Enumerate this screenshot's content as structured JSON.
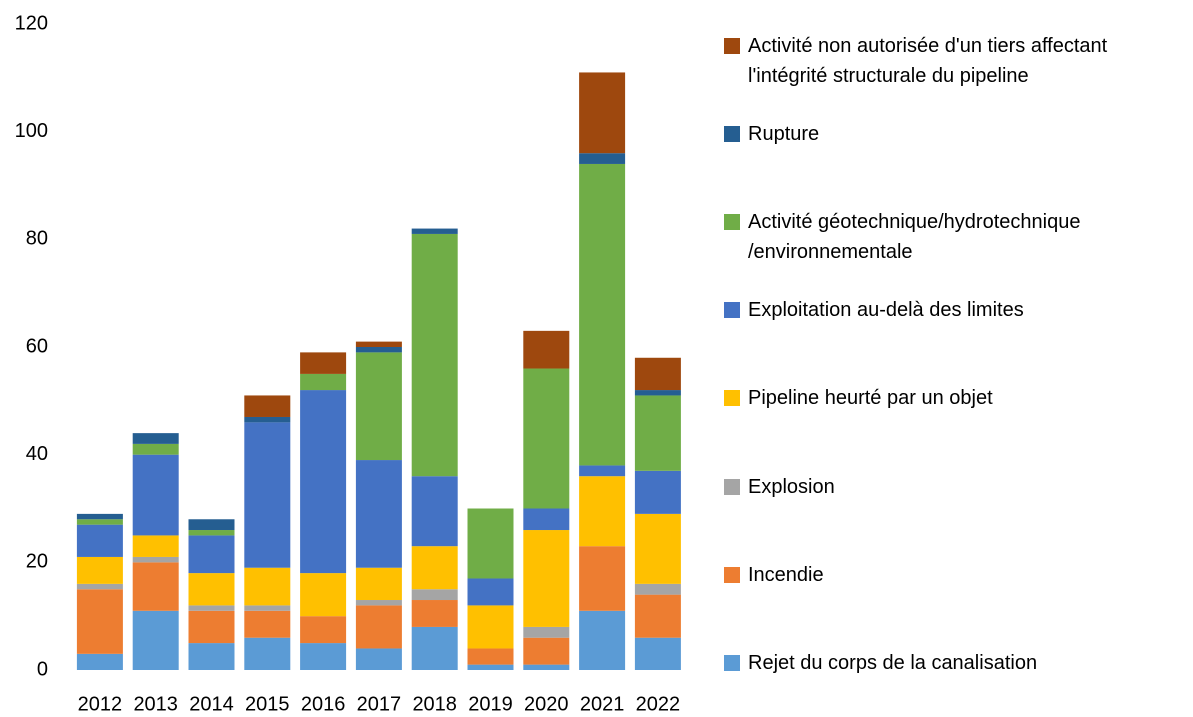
{
  "chart_data": {
    "type": "stacked_bar",
    "categories": [
      "2012",
      "2013",
      "2014",
      "2015",
      "2016",
      "2017",
      "2018",
      "2019",
      "2020",
      "2021",
      "2022"
    ],
    "series": [
      {
        "name": "Rejet du corps de la canalisation",
        "color": "#5b9bd5",
        "values": [
          3,
          11,
          5,
          6,
          5,
          4,
          8,
          1,
          1,
          11,
          6
        ]
      },
      {
        "name": "Incendie",
        "color": "#ed7d31",
        "values": [
          12,
          9,
          6,
          5,
          5,
          8,
          5,
          3,
          5,
          12,
          8
        ]
      },
      {
        "name": "Explosion",
        "color": "#a5a5a5",
        "values": [
          1,
          1,
          1,
          1,
          0,
          1,
          2,
          0,
          2,
          0,
          2
        ]
      },
      {
        "name": "Pipeline heurté par un objet",
        "color": "#ffc000",
        "values": [
          5,
          4,
          6,
          7,
          8,
          6,
          8,
          8,
          18,
          13,
          13
        ]
      },
      {
        "name": "Exploitation au-delà des limites",
        "color": "#4472c4",
        "values": [
          6,
          15,
          7,
          27,
          34,
          20,
          13,
          5,
          4,
          2,
          8
        ]
      },
      {
        "name": "Activité géotechnique/hydrotechnique\n/environnementale",
        "color": "#70ad47",
        "values": [
          1,
          2,
          1,
          0,
          3,
          20,
          45,
          13,
          26,
          56,
          14
        ]
      },
      {
        "name": "Rupture",
        "color": "#255e91",
        "values": [
          1,
          2,
          2,
          1,
          0,
          1,
          1,
          0,
          0,
          2,
          1
        ]
      },
      {
        "name": "Activité non autorisée d'un tiers affectant\nl'intégrité structurale du pipeline",
        "color": "#9e480e",
        "values": [
          0,
          0,
          0,
          4,
          4,
          1,
          0,
          0,
          7,
          15,
          6
        ]
      }
    ],
    "ylim": [
      0,
      120
    ],
    "yticks": [
      0,
      20,
      40,
      60,
      80,
      100,
      120
    ],
    "grid": false,
    "legend": "right"
  }
}
